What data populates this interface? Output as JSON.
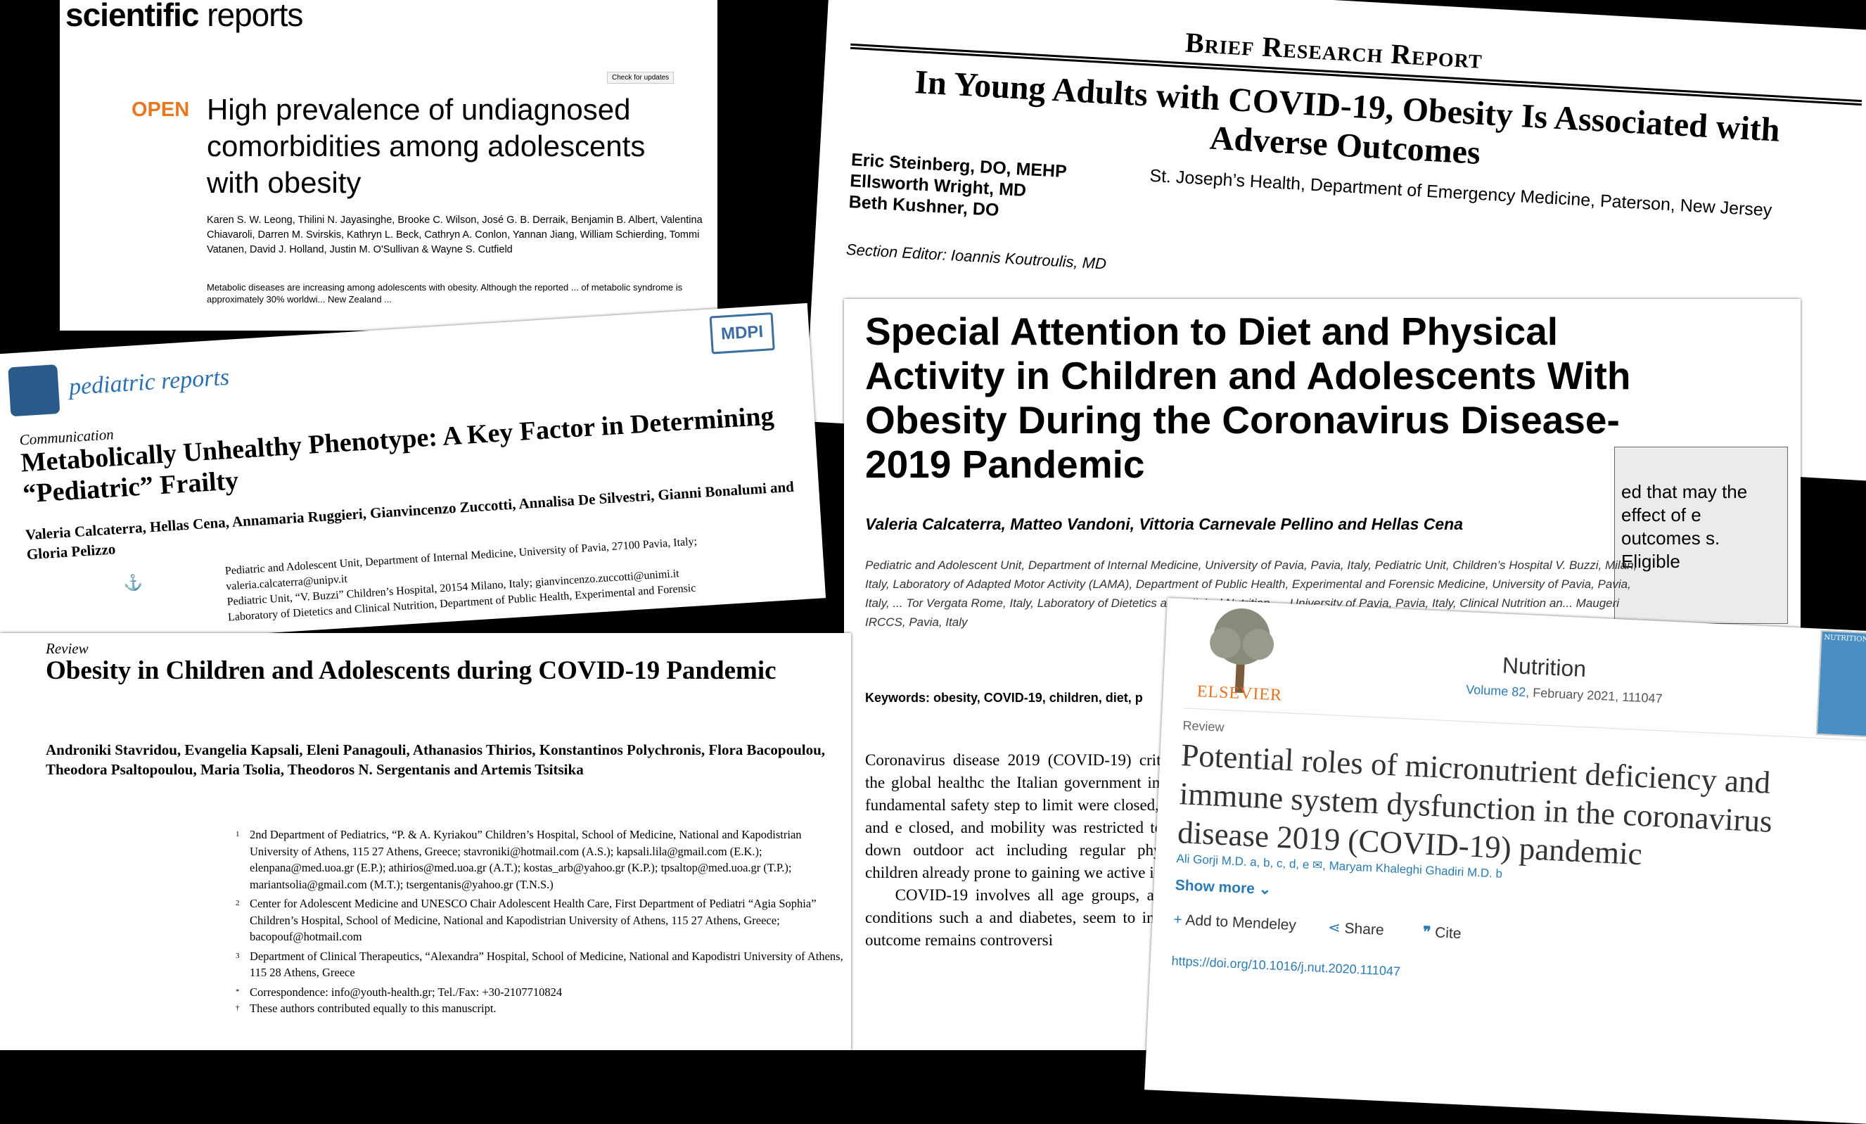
{
  "c1": {
    "brand_bold": "scientific",
    "brand_rest": " reports",
    "badge": "Check for updates",
    "open": "OPEN",
    "title": "High prevalence of undiagnosed comorbidities among adolescents with obesity",
    "authors": "Karen S. W. Leong, Thilini N. Jayasinghe, Brooke C. Wilson, José G. B. Derraik, Benjamin B. Albert, Valentina Chiavaroli, Darren M. Svirskis, Kathryn L. Beck, Cathryn A. Conlon, Yannan Jiang, William Schierding, Tommi Vatanen, David J. Holland, Justin M. O'Sullivan & Wayne S. Cutfield",
    "abstract": "Metabolic diseases are increasing among adolescents with obesity. Although the reported ... of metabolic syndrome is approximately 30% worldwi... New Zealand ..."
  },
  "c2": {
    "type": "Brief Research Report",
    "title": "In Young Adults with COVID-19, Obesity Is Associated with Adverse Outcomes",
    "authors": [
      "Eric Steinberg, DO, MEHP",
      "Ellsworth Wright, MD",
      "Beth Kushner, DO"
    ],
    "affil": "St. Joseph’s Health, Department of Emergency Medicine, Paterson, New Jersey",
    "editor": "Section Editor: Ioannis Koutroulis, MD"
  },
  "c3": {
    "journal": "pediatric reports",
    "mdpi": "MDPI",
    "kind": "Communication",
    "title": "Metabolically Unhealthy Phenotype: A Key Factor in Determining “Pediatric” Frailty",
    "authors": "Valeria Calcaterra, Hellas Cena, Annamaria Ruggieri, Gianvincenzo Zuccotti, Annalisa De Silvestri, Gianni Bonalumi and Gloria Pelizzo",
    "aff1": "Pediatric and Adolescent Unit, Department of Internal Medicine, University of Pavia, 27100 Pavia, Italy; valeria.calcaterra@unipv.it",
    "aff2": "Pediatric Unit, “V. Buzzi” Children’s Hospital, 20154 Milano, Italy; gianvincenzo.zuccotti@unimi.it",
    "aff3": "Laboratory of Dietetics and Clinical Nutrition, Department of Public Health, Experimental and Forensic",
    "anchor": "⚓"
  },
  "c4": {
    "kind": "Review",
    "title": "Obesity in Children and Adolescents during COVID-19 Pandemic",
    "authors": "Androniki Stavridou, Evangelia Kapsali, Eleni Panagouli, Athanasios Thirios, Konstantinos Polychronis, Flora Bacopoulou, Theodora Psaltopoulou, Maria Tsolia, Theodoros N. Sergentanis and Artemis Tsitsika",
    "aff": [
      {
        "n": "1",
        "t": "2nd Department of Pediatrics, “P. & A. Kyriakou” Children’s Hospital, School of Medicine, National and Kapodistrian University of Athens, 115 27 Athens, Greece; stavroniki@hotmail.com (A.S.); kapsali.lila@gmail.com (E.K.); elenpana@med.uoa.gr (E.P.); athirios@med.uoa.gr (A.T.); kostas_arb@yahoo.gr (K.P.); tpsaltop@med.uoa.gr (T.P.); mariantsolia@gmail.com (M.T.); tsergentanis@yahoo.gr (T.N.S.)"
      },
      {
        "n": "2",
        "t": "Center for Adolescent Medicine and UNESCO Chair Adolescent Health Care, First Department of Pediatri “Agia Sophia” Children’s Hospital, School of Medicine, National and Kapodistrian University of Athens, 115 27 Athens, Greece; bacopouf@hotmail.com"
      },
      {
        "n": "3",
        "t": "Department of Clinical Therapeutics, “Alexandra” Hospital, School of Medicine, National and Kapodistri University of Athens, 115 28 Athens, Greece"
      },
      {
        "n": "*",
        "t": "Correspondence: info@youth-health.gr; Tel./Fax: +30-2107710824"
      },
      {
        "n": "†",
        "t": "These authors contributed equally to this manuscript."
      }
    ]
  },
  "c5": {
    "title": "Special Attention to Diet and Physical Activity in Children and Adolescents With Obesity During the Coronavirus Disease-2019 Pandemic",
    "authors": "Valeria Calcaterra, Matteo Vandoni, Vittoria Carnevale Pellino and Hellas Cena",
    "aff": "Pediatric and Adolescent Unit, Department of Internal Medicine, University of Pavia, Pavia, Italy, Pediatric Unit, Children’s Hospital V. Buzzi, Milan, Italy, Laboratory of Adapted Motor Activity (LAMA), Department of Public Health, Experimental and Forensic Medicine, University of Pavia, Pavia, Italy, ... Tor Vergata Rome, Italy, Laboratory of Dietetics and Clinical Nutrition, ... University of Pavia, Pavia, Italy, Clinical Nutrition an... Maugeri IRCCS, Pavia, Italy",
    "keywords": "Keywords: obesity, COVID-19, children, diet, p",
    "body": "Coronavirus disease 2019 (COVID-19) critical challenges for the global healthc the Italian government imposed a natio as a fundamental safety step to limit were closed, requiring childcare and e closed, and mobility was restricted to directives locking down outdoor act including regular physical activity and children already prone to gaining we active is recommended.",
    "body2": "COVID-19 involves all age groups, adults (2). In adults, conditions such a and diabetes, seem to increase the ri on the outcome remains controversi",
    "box_text": "ed that may the effect of e outcomes s. Eligible"
  },
  "c6": {
    "publisher": "ELSEVIER",
    "journal": "Nutrition",
    "volume_link": "Volume 82",
    "volume_rest": ", February 2021, 111047",
    "cover": "NUTRITION",
    "kind": "Review",
    "title": "Potential roles of micronutrient deficiency and immune system dysfunction in the coronavirus disease 2019 (COVID-19) pandemic",
    "authors": "Ali Gorji M.D. a, b, c, d, e  ✉,  Maryam Khaleghi Ghadiri M.D. b",
    "show_more": "Show more",
    "add": "Add to Mendeley",
    "share": "Share",
    "cite": "Cite",
    "doi": "https://doi.org/10.1016/j.nut.2020.111047"
  }
}
